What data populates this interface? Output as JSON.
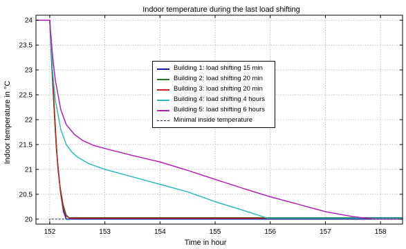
{
  "chart_data": {
    "type": "line",
    "title": "Indoor temperature during the last load shifting",
    "xlabel": "Time in hour",
    "ylabel": "Indoor temperature in °C",
    "xlim": [
      151.75,
      158.4
    ],
    "ylim": [
      19.9,
      24.1
    ],
    "xticks": [
      152,
      153,
      154,
      155,
      156,
      157,
      158
    ],
    "yticks": [
      20,
      20.5,
      21,
      21.5,
      22,
      22.5,
      23,
      23.5,
      24
    ],
    "xtick_labels": [
      "152",
      "153",
      "154",
      "155",
      "156",
      "157",
      "158"
    ],
    "ytick_labels": [
      "20",
      "20.5",
      "21",
      "21.5",
      "22",
      "22.5",
      "23",
      "23.5",
      "24"
    ],
    "grid": true,
    "legend_position": "center",
    "series": [
      {
        "name": "Building 1: load shifting 15 min",
        "color": "#1a1aa8",
        "style": "solid",
        "x": [
          151.75,
          152.0,
          152.02,
          152.05,
          152.1,
          152.15,
          152.2,
          152.25,
          152.3,
          158.4
        ],
        "y": [
          24.0,
          24.0,
          23.5,
          22.8,
          21.8,
          21.0,
          20.5,
          20.15,
          20.0,
          20.0
        ]
      },
      {
        "name": "Building 2: load shifting 20 min",
        "color": "#1e7a1e",
        "style": "solid",
        "x": [
          151.75,
          152.0,
          152.03,
          152.07,
          152.12,
          152.18,
          152.24,
          152.3,
          152.35,
          158.4
        ],
        "y": [
          24.0,
          24.0,
          23.3,
          22.4,
          21.4,
          20.7,
          20.3,
          20.08,
          20.03,
          20.03
        ]
      },
      {
        "name": "Building 3: load shifting 20 min",
        "color": "#cc2222",
        "style": "solid",
        "x": [
          151.75,
          152.0,
          152.04,
          152.08,
          152.13,
          152.19,
          152.25,
          152.3,
          152.36,
          158.4
        ],
        "y": [
          24.0,
          24.0,
          23.2,
          22.3,
          21.3,
          20.6,
          20.2,
          20.06,
          20.02,
          20.02
        ]
      },
      {
        "name": "Building 4: load shifting 4 hours",
        "color": "#28bdbd",
        "style": "solid",
        "x": [
          151.75,
          152.0,
          152.05,
          152.1,
          152.2,
          152.3,
          152.4,
          152.5,
          152.7,
          153.0,
          153.5,
          154.0,
          154.5,
          155.0,
          155.5,
          155.95,
          158.4
        ],
        "y": [
          24.0,
          24.0,
          23.0,
          22.4,
          21.8,
          21.5,
          21.35,
          21.25,
          21.12,
          21.0,
          20.85,
          20.7,
          20.55,
          20.35,
          20.18,
          20.02,
          20.02
        ]
      },
      {
        "name": "Building 5: load shifting 6 hours",
        "color": "#b51eb5",
        "style": "solid",
        "x": [
          151.75,
          152.0,
          152.05,
          152.1,
          152.2,
          152.3,
          152.45,
          152.6,
          152.8,
          153.0,
          153.5,
          154.0,
          154.5,
          155.0,
          155.5,
          156.0,
          156.5,
          157.0,
          157.5,
          157.9,
          158.4
        ],
        "y": [
          24.0,
          24.0,
          23.3,
          22.8,
          22.2,
          21.9,
          21.7,
          21.58,
          21.48,
          21.42,
          21.28,
          21.15,
          20.98,
          20.8,
          20.62,
          20.45,
          20.3,
          20.15,
          20.05,
          20.0,
          20.0
        ]
      },
      {
        "name": "Minimal inside temperature",
        "color": "#1a2a66",
        "style": "dashed",
        "x": [
          152.0,
          152.0,
          158.4
        ],
        "y": [
          19.9,
          20.0,
          20.0
        ]
      }
    ]
  }
}
